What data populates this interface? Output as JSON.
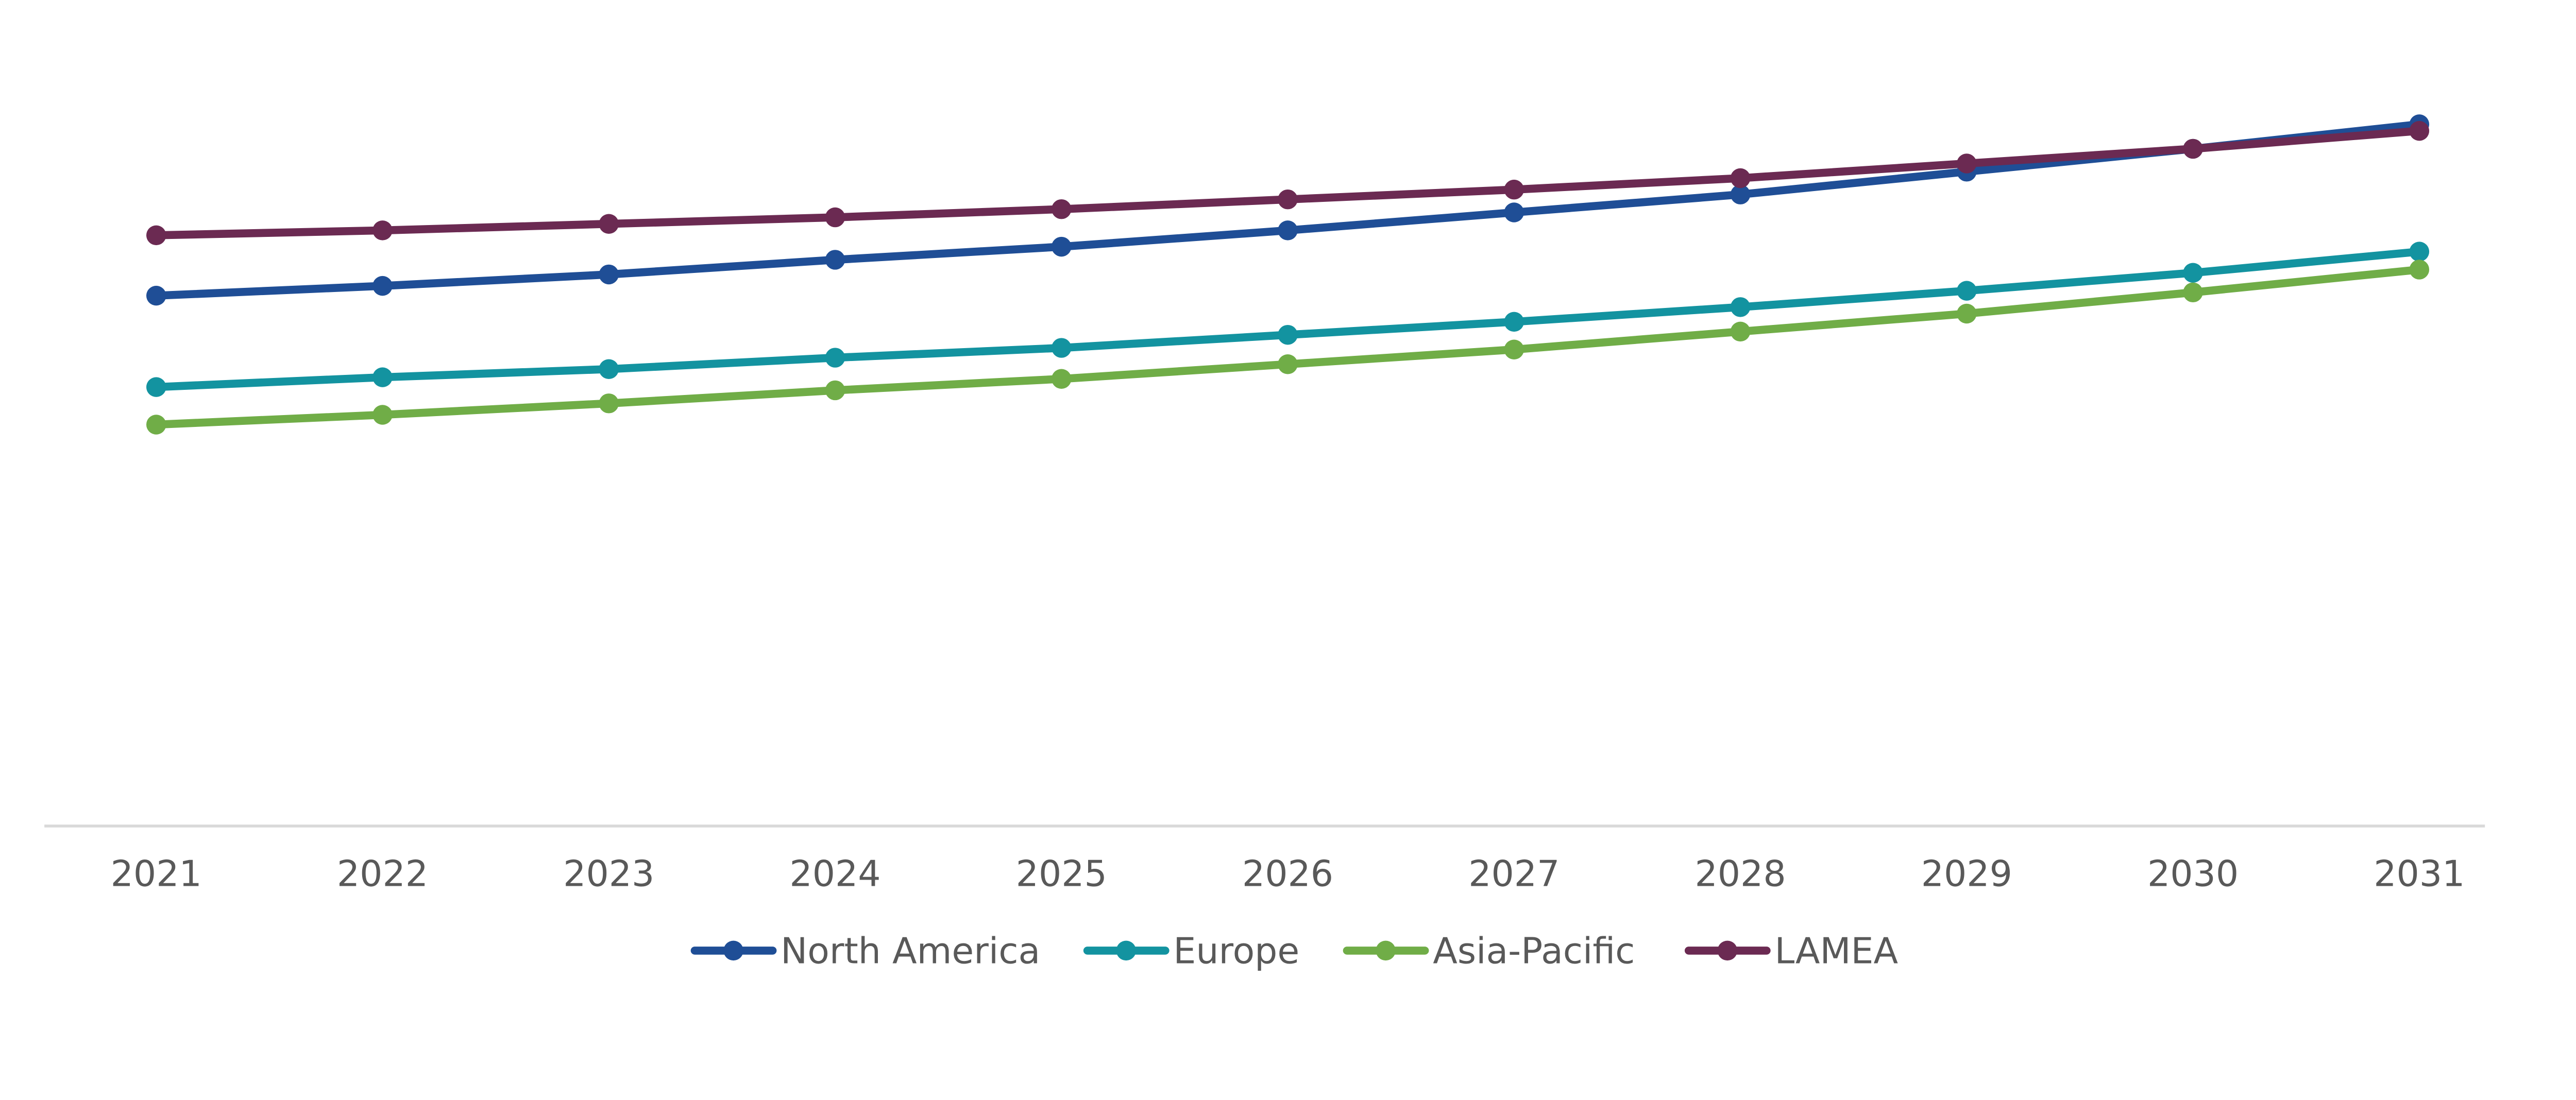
{
  "chart_data": {
    "type": "line",
    "title": "",
    "xlabel": "",
    "ylabel": "",
    "categories": [
      "2021",
      "2022",
      "2023",
      "2024",
      "2025",
      "2026",
      "2027",
      "2028",
      "2029",
      "2030",
      "2031"
    ],
    "ylim": [
      0,
      503
    ],
    "y_axis_visible": false,
    "grid": false,
    "legend_position": "bottom",
    "series": [
      {
        "name": "North America",
        "color": "#1F4E96",
        "values": [
          325,
          331,
          338,
          347,
          355,
          365,
          376,
          387,
          401,
          415,
          430
        ]
      },
      {
        "name": "Europe",
        "color": "#1393A0",
        "values": [
          269,
          275,
          280,
          287,
          293,
          301,
          309,
          318,
          328,
          339,
          352
        ]
      },
      {
        "name": "Asia-Pacific",
        "color": "#70AD47",
        "values": [
          246,
          252,
          259,
          267,
          274,
          283,
          292,
          303,
          314,
          327,
          341
        ]
      },
      {
        "name": "LAMEA",
        "color": "#6B2A52",
        "values": [
          362,
          365,
          369,
          373,
          378,
          384,
          390,
          397,
          406,
          415,
          426
        ]
      }
    ]
  }
}
